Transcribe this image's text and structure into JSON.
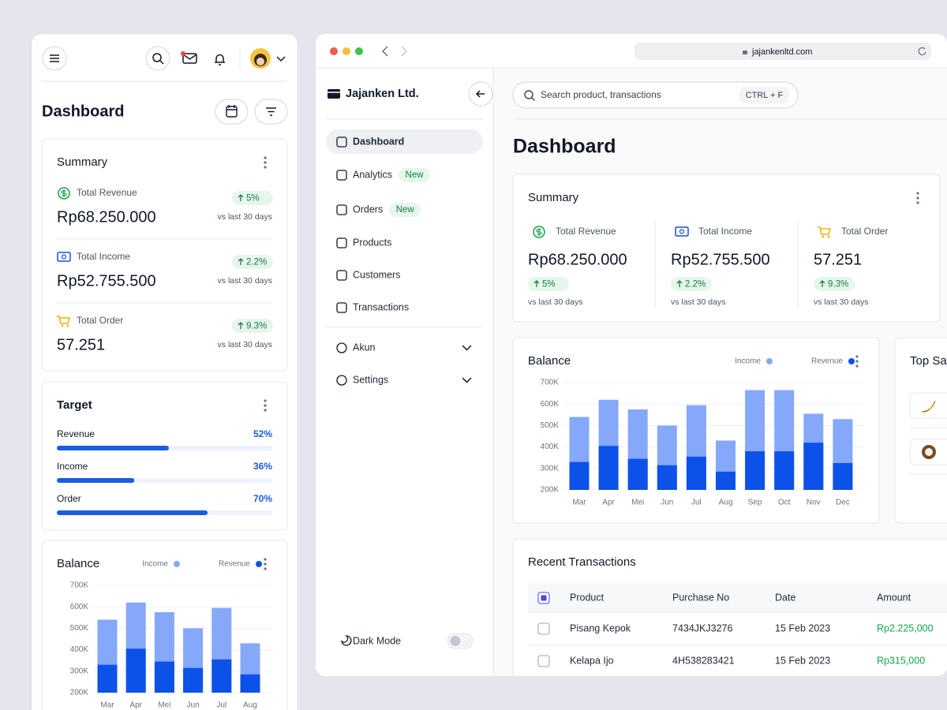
{
  "page_title": "Dashboard",
  "summary": {
    "title": "Summary",
    "items": [
      {
        "label": "Total Revenue",
        "value": "Rp68.250.000",
        "change": "5%",
        "note": "vs last 30 days"
      },
      {
        "label": "Total Income",
        "value": "Rp52.755.500",
        "change": "2.2%",
        "note": "vs last 30 days"
      },
      {
        "label": "Total Order",
        "value": "57.251",
        "change": "9.3%",
        "note": "vs last 30 days"
      }
    ]
  },
  "target": {
    "title": "Target",
    "rows": [
      {
        "label": "Revenue",
        "value": 52,
        "value_label": "52%"
      },
      {
        "label": "Income",
        "value": 36,
        "value_label": "36%"
      },
      {
        "label": "Order",
        "value": 70,
        "value_label": "70%"
      }
    ]
  },
  "chart_data": {
    "type": "bar",
    "title": "Balance",
    "categories": [
      "Mar",
      "Apr",
      "Mei",
      "Jun",
      "Jul",
      "Aug",
      "Sep",
      "Oct",
      "Nov",
      "Dec"
    ],
    "series": [
      {
        "name": "Income",
        "color": "#86a8fb",
        "values": [
          540000,
          620000,
          575000,
          500000,
          595000,
          430000,
          665000,
          665000,
          555000,
          530000
        ]
      },
      {
        "name": "Revenue",
        "color": "#0d52e8",
        "values": [
          330000,
          405000,
          345000,
          315000,
          355000,
          285000,
          380000,
          380000,
          420000,
          325000
        ]
      }
    ],
    "ylim": [
      200000,
      700000
    ],
    "yticks": [
      {
        "value": 200000,
        "label": "200K"
      },
      {
        "value": 300000,
        "label": "300K"
      },
      {
        "value": 400000,
        "label": "400K"
      },
      {
        "value": 500000,
        "label": "500K"
      },
      {
        "value": 600000,
        "label": "600K"
      },
      {
        "value": 700000,
        "label": "700K"
      }
    ],
    "grid": true
  },
  "browser": {
    "url": "jajankenltd.com",
    "brand": "Jajanken Ltd.",
    "search": {
      "placeholder": "Search product, transactions",
      "shortcut": "CTRL + F"
    },
    "nav": [
      {
        "label": "Dashboard"
      },
      {
        "label": "Analytics",
        "badge": "New"
      },
      {
        "label": "Orders",
        "badge": "New"
      },
      {
        "label": "Products"
      },
      {
        "label": "Customers"
      },
      {
        "label": "Transactions"
      }
    ],
    "nav_secondary": [
      "Akun",
      "Settings"
    ],
    "dark_mode": "Dark Mode"
  },
  "top_sales": {
    "title": "Top Sales"
  },
  "transactions": {
    "title": "Recent Transactions",
    "columns": [
      "Product",
      "Purchase No",
      "Date",
      "Amount"
    ],
    "rows": [
      [
        "Pisang Kepok",
        "7434JKJ3276",
        "15 Feb 2023",
        "Rp2.225,000"
      ],
      [
        "Kelapa Ijo",
        "4H538283421",
        "15 Feb 2023",
        "Rp315,000"
      ]
    ]
  }
}
